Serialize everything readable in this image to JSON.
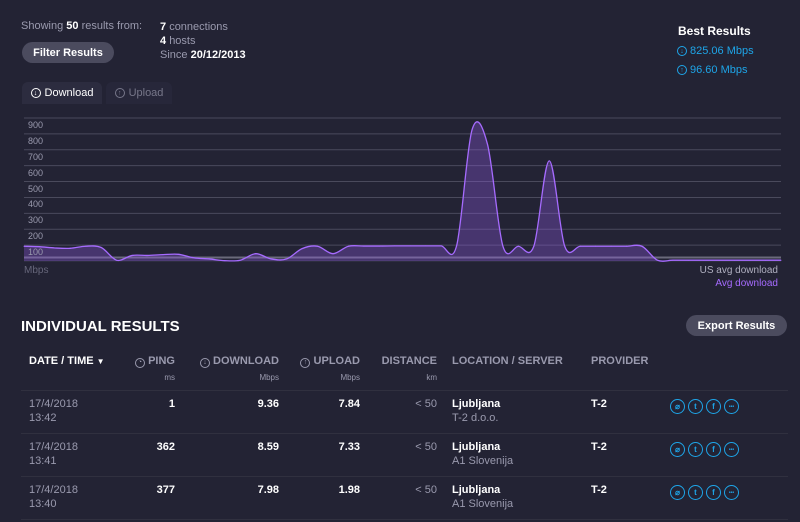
{
  "summary": {
    "showing_prefix": "Showing",
    "count": "50",
    "showing_suffix": "results from:",
    "connections_count": "7",
    "connections_label": "connections",
    "hosts_count": "4",
    "hosts_label": "hosts",
    "since_label": "Since",
    "since_date": "20/12/2013"
  },
  "filter_button": "Filter Results",
  "best": {
    "title": "Best Results",
    "download": "825.06 Mbps",
    "upload": "96.60 Mbps"
  },
  "tabs": [
    {
      "label": "Download",
      "active": true
    },
    {
      "label": "Upload",
      "active": false
    }
  ],
  "chart_data": {
    "type": "area",
    "ylabel": "Mbps",
    "ylim": [
      0,
      900
    ],
    "yticks": [
      "100",
      "200",
      "300",
      "400",
      "500",
      "600",
      "700",
      "800",
      "900"
    ],
    "grid": true,
    "legend": [
      "US avg download",
      "Avg download"
    ],
    "legend_placement": "bottom-right",
    "series": [
      {
        "name": "Avg download",
        "color": "#a66bff",
        "values": [
          93,
          90,
          82,
          80,
          93,
          85,
          5,
          35,
          35,
          40,
          42,
          20,
          13,
          2,
          5,
          46,
          13,
          13,
          78,
          93,
          46,
          93,
          94,
          94,
          95,
          95,
          95,
          95,
          95,
          825,
          735,
          93,
          93,
          93,
          630,
          93,
          93,
          93,
          93,
          93,
          93,
          5,
          5,
          5,
          5,
          5,
          5,
          5,
          5,
          5
        ]
      },
      {
        "name": "US avg download",
        "color": "#6a6a7a",
        "values": [
          22,
          22,
          22,
          22,
          22,
          22,
          22,
          22,
          22,
          22,
          22,
          22,
          22,
          22,
          22,
          22,
          22,
          22,
          22,
          22,
          22,
          22,
          22,
          22,
          22,
          22,
          22,
          22,
          22,
          22,
          22,
          22,
          22,
          22,
          22,
          22,
          22,
          22,
          22,
          22,
          22,
          22,
          22,
          22,
          22,
          22,
          22,
          22,
          22,
          22
        ]
      }
    ]
  },
  "results": {
    "title": "INDIVIDUAL RESULTS",
    "export_button": "Export Results",
    "columns": [
      {
        "label": "DATE / TIME",
        "unit": ""
      },
      {
        "label": "PING",
        "unit": "ms"
      },
      {
        "label": "DOWNLOAD",
        "unit": "Mbps"
      },
      {
        "label": "UPLOAD",
        "unit": "Mbps"
      },
      {
        "label": "DISTANCE",
        "unit": "km"
      },
      {
        "label": "LOCATION / SERVER",
        "unit": ""
      },
      {
        "label": "PROVIDER",
        "unit": ""
      }
    ],
    "rows": [
      {
        "date": "17/4/2018",
        "time": "13:42",
        "ping": "1",
        "download": "9.36",
        "upload": "7.84",
        "distance": "< 50",
        "location": "Ljubljana",
        "server": "T-2 d.o.o.",
        "provider": "T-2"
      },
      {
        "date": "17/4/2018",
        "time": "13:41",
        "ping": "362",
        "download": "8.59",
        "upload": "7.33",
        "distance": "< 50",
        "location": "Ljubljana",
        "server": "A1 Slovenija",
        "provider": "T-2"
      },
      {
        "date": "17/4/2018",
        "time": "13:40",
        "ping": "377",
        "download": "7.98",
        "upload": "1.98",
        "distance": "< 50",
        "location": "Ljubljana",
        "server": "A1 Slovenija",
        "provider": "T-2"
      }
    ]
  }
}
